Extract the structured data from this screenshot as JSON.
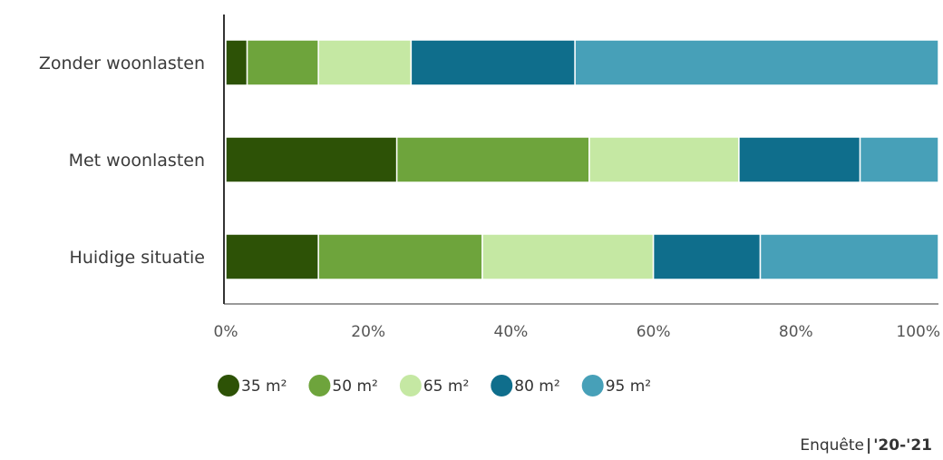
{
  "chart_data": {
    "type": "bar",
    "orientation": "horizontal",
    "stacked": true,
    "normalized": true,
    "categories": [
      "Zonder woonlasten",
      "Met woonlasten",
      "Huidige situatie"
    ],
    "series": [
      {
        "name": "35 m²",
        "color": "#2d5206",
        "values": [
          3,
          24,
          13
        ]
      },
      {
        "name": "50 m²",
        "color": "#6ea43c",
        "values": [
          10,
          27,
          23
        ]
      },
      {
        "name": "65 m²",
        "color": "#c5e8a3",
        "values": [
          13,
          21,
          24
        ]
      },
      {
        "name": "80 m²",
        "color": "#0f6e8c",
        "values": [
          23,
          17,
          15
        ]
      },
      {
        "name": "95 m²",
        "color": "#47a0b8",
        "values": [
          51,
          11,
          25
        ]
      }
    ],
    "x_ticks": [
      "0%",
      "20%",
      "40%",
      "60%",
      "80%",
      "100%"
    ],
    "xlim": [
      0,
      100
    ],
    "grid": false,
    "legend_position": "bottom-left"
  },
  "source": {
    "label": "Enquête",
    "separator": "|",
    "years": "'20-'21"
  }
}
